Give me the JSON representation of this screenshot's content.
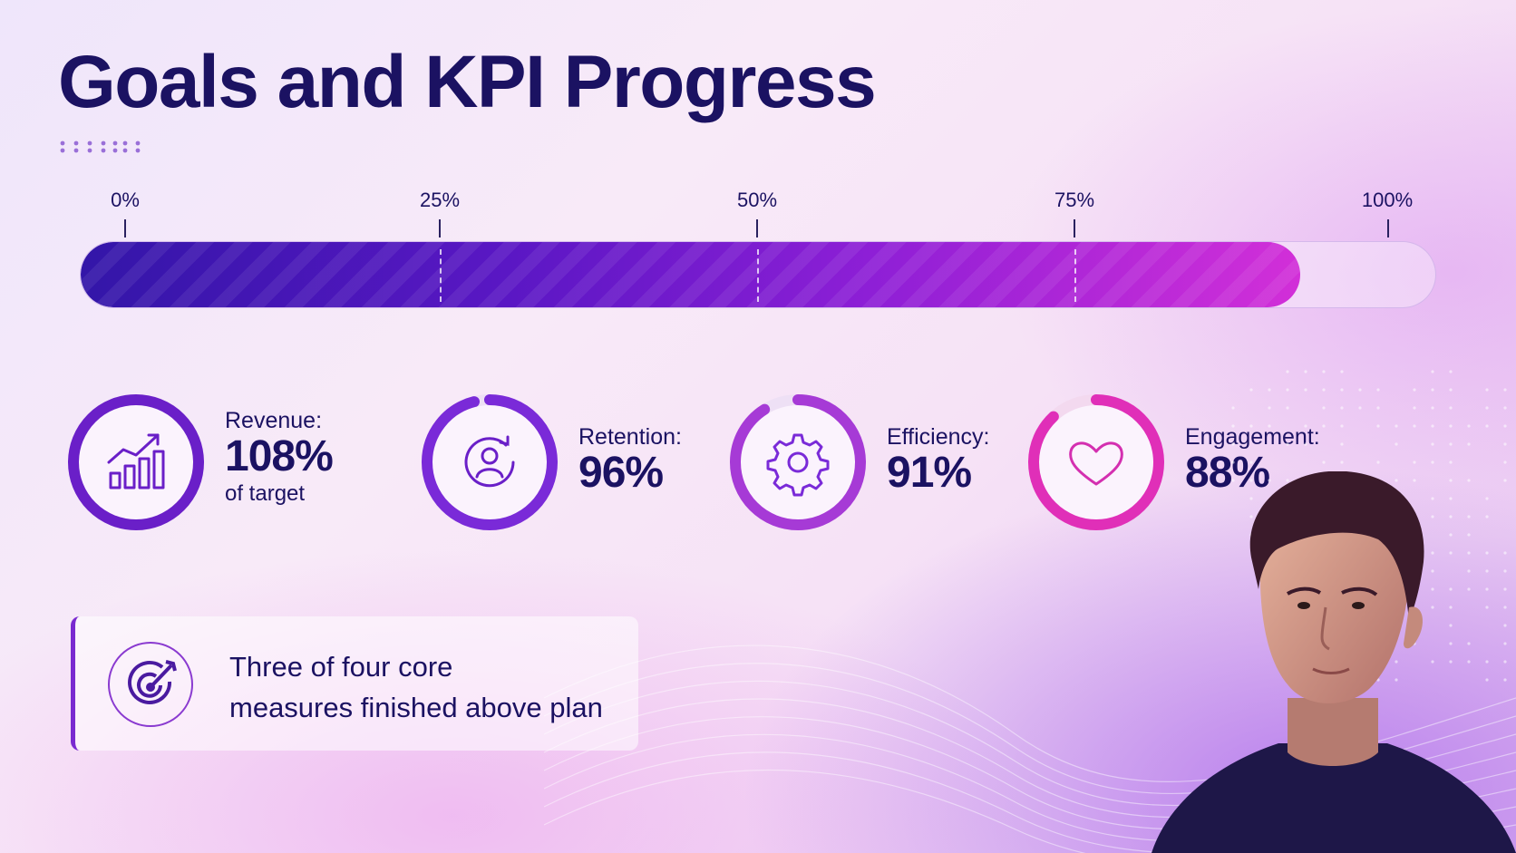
{
  "title": "Goals and KPI Progress",
  "progress_scale": {
    "ticks": [
      "0%",
      "25%",
      "50%",
      "75%",
      "100%"
    ],
    "value_percent": 90
  },
  "kpis": [
    {
      "label": "Revenue:",
      "value": "108%",
      "sub": "of target",
      "icon": "growth-chart-icon",
      "percent": 100,
      "color": "#6a1fc8"
    },
    {
      "label": "Retention:",
      "value": "96%",
      "sub": "",
      "icon": "user-refresh-icon",
      "percent": 96,
      "color": "#7a2ad8"
    },
    {
      "label": "Efficiency:",
      "value": "91%",
      "sub": "",
      "icon": "gear-icon",
      "percent": 91,
      "color": "#a63ad6"
    },
    {
      "label": "Engagement:",
      "value": "88%",
      "sub": "",
      "icon": "heart-icon",
      "percent": 88,
      "color": "#e02fb8"
    }
  ],
  "note": {
    "icon": "target-arrow-icon",
    "line1": "Three of four core",
    "line2": "measures finished above plan"
  },
  "colors": {
    "text": "#1b1262",
    "bar_start": "#3316a8",
    "bar_end": "#d22fd8"
  }
}
